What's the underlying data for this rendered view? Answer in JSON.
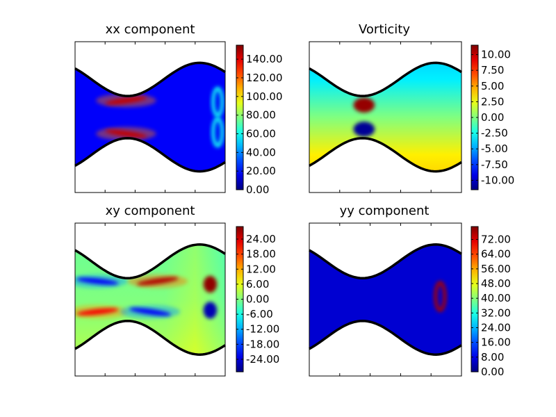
{
  "chart_data": [
    {
      "type": "heatmap",
      "title": "xx component",
      "colormap": "jet",
      "colorbar": {
        "range": [
          0,
          155
        ],
        "ticks": [
          "0.00",
          "20.00",
          "40.00",
          "60.00",
          "80.00",
          "100.00",
          "120.00",
          "140.00"
        ]
      },
      "features": [
        {
          "x": 0.34,
          "y": 0.61,
          "value": 145,
          "shape": "streak"
        },
        {
          "x": 0.34,
          "y": 0.39,
          "value": 145,
          "shape": "streak"
        },
        {
          "x": 0.95,
          "y": 0.6,
          "value": 60,
          "shape": "arc"
        },
        {
          "x": 0.95,
          "y": 0.4,
          "value": 60,
          "shape": "arc"
        }
      ]
    },
    {
      "type": "heatmap",
      "title": "Vorticity",
      "colormap": "jet",
      "colorbar": {
        "range": [
          -11.5,
          11.5
        ],
        "ticks": [
          "-10.00",
          "-7.50",
          "-5.00",
          "-2.50",
          "0.00",
          "2.50",
          "5.00",
          "7.50",
          "10.00"
        ]
      },
      "features": [
        {
          "x": 0.36,
          "y": 0.58,
          "value": 11,
          "shape": "lobe"
        },
        {
          "x": 0.36,
          "y": 0.42,
          "value": -11,
          "shape": "lobe"
        }
      ]
    },
    {
      "type": "heatmap",
      "title": "xy component",
      "colormap": "jet",
      "colorbar": {
        "range": [
          -29,
          29
        ],
        "ticks": [
          "-24.00",
          "-18.00",
          "-12.00",
          "-6.00",
          "0.00",
          "6.00",
          "12.00",
          "18.00",
          "24.00"
        ]
      },
      "features": [
        {
          "x": 0.15,
          "y": 0.62,
          "value": -22,
          "shape": "streak"
        },
        {
          "x": 0.15,
          "y": 0.42,
          "value": 22,
          "shape": "streak"
        },
        {
          "x": 0.55,
          "y": 0.62,
          "value": 26,
          "shape": "streak"
        },
        {
          "x": 0.5,
          "y": 0.42,
          "value": -22,
          "shape": "streak"
        },
        {
          "x": 0.9,
          "y": 0.6,
          "value": 28,
          "shape": "blob"
        },
        {
          "x": 0.9,
          "y": 0.43,
          "value": -26,
          "shape": "blob"
        }
      ]
    },
    {
      "type": "heatmap",
      "title": "yy component",
      "colormap": "jet",
      "colorbar": {
        "range": [
          0,
          79
        ],
        "ticks": [
          "0.00",
          "8.00",
          "16.00",
          "24.00",
          "32.00",
          "40.00",
          "48.00",
          "56.00",
          "64.00",
          "72.00"
        ]
      },
      "features": [
        {
          "x": 0.86,
          "y": 0.52,
          "value": 76,
          "shape": "arc"
        }
      ]
    }
  ]
}
